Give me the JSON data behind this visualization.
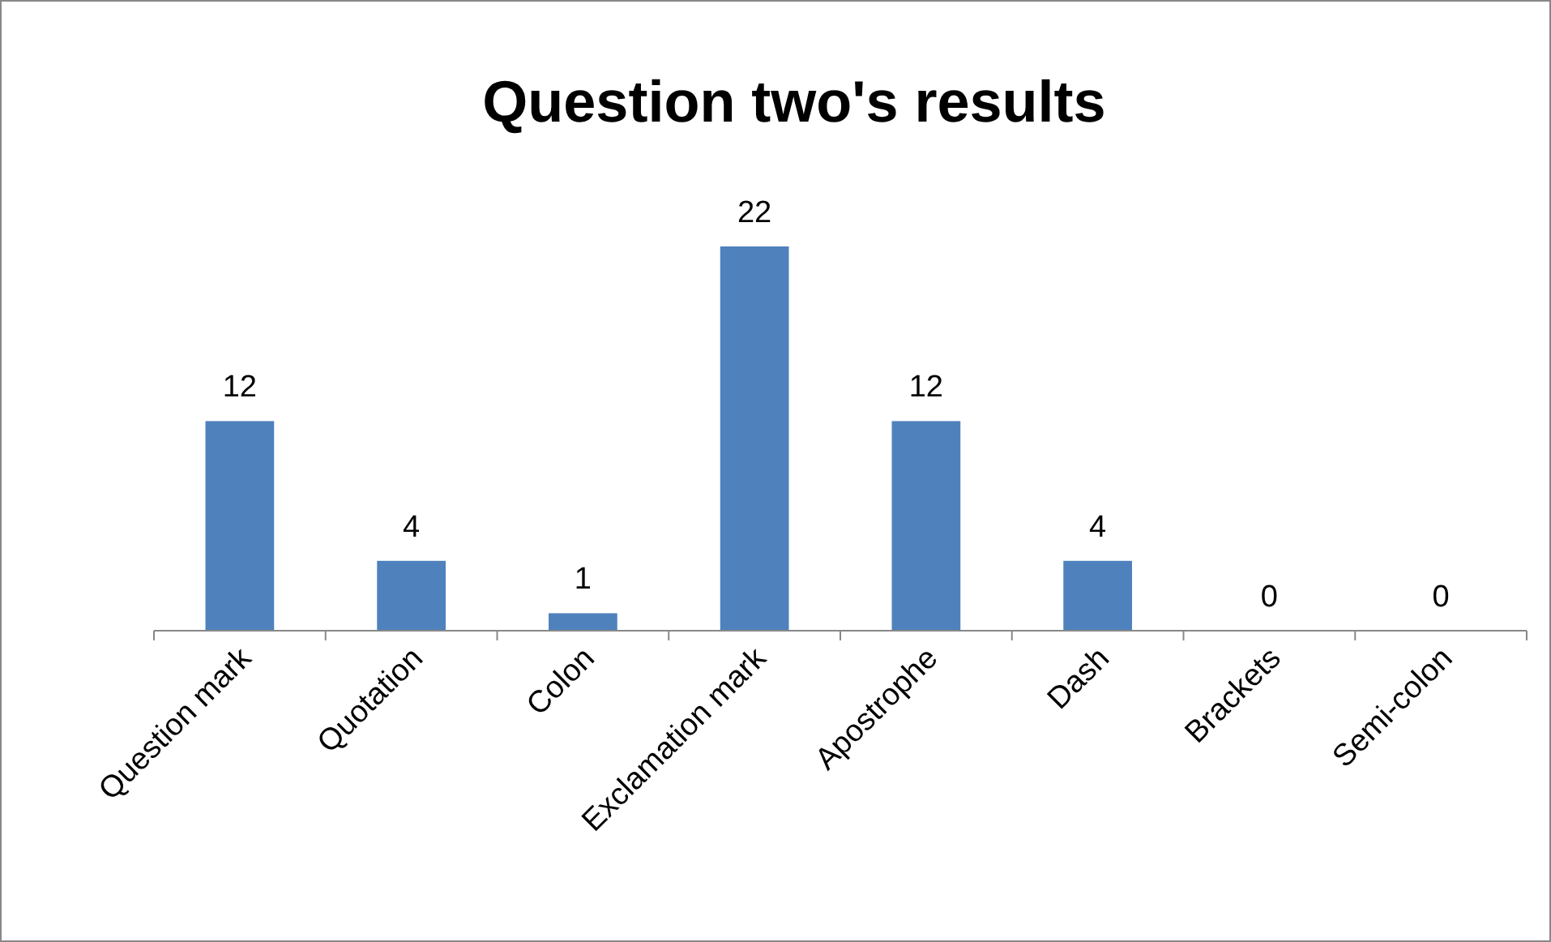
{
  "chart_data": {
    "type": "bar",
    "title": "Question two's results",
    "categories": [
      "Question mark",
      "Quotation",
      "Colon",
      "Exclamation mark",
      "Apostrophe",
      "Dash",
      "Brackets",
      "Semi-colon"
    ],
    "values": [
      12,
      4,
      1,
      22,
      12,
      4,
      0,
      0
    ],
    "color": "#4f81bd",
    "data_labels": true
  }
}
